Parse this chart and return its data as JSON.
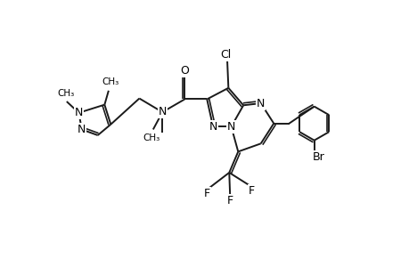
{
  "bg_color": "#ffffff",
  "line_color": "#1a1a1a",
  "line_width": 1.4,
  "font_size": 9,
  "fig_width": 4.6,
  "fig_height": 3.0,
  "dpi": 100,
  "xlim": [
    0,
    10
  ],
  "ylim": [
    0,
    6.5
  ]
}
